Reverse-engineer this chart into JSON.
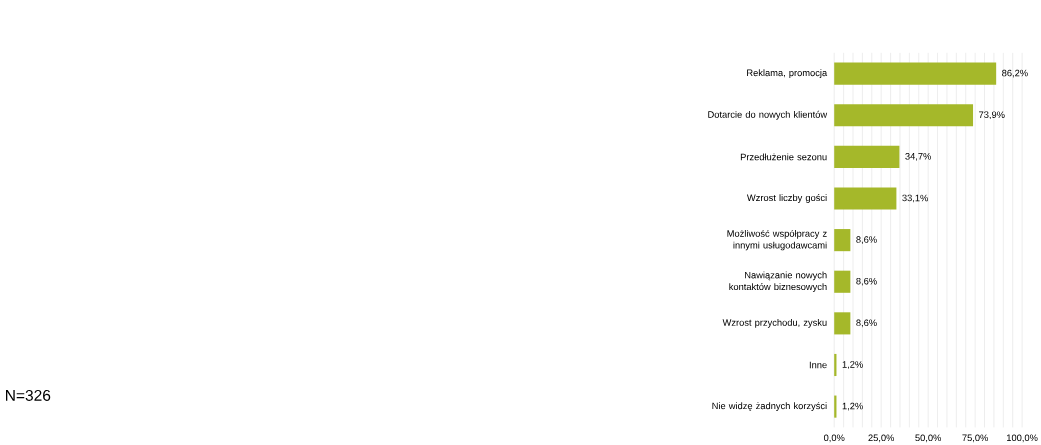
{
  "chart_data": {
    "type": "bar",
    "orientation": "horizontal",
    "categories": [
      "Reklama, promocja",
      "Dotarcie do nowych klientów",
      "Przedłużenie sezonu",
      "Wzrost liczby gości",
      "Możliwość współpracy z innymi usługodawcami",
      "Nawiązanie nowych kontaktów biznesowych",
      "Wzrost przychodu, zysku",
      "Inne",
      "Nie widzę żadnych korzyści"
    ],
    "values": [
      86.2,
      73.9,
      34.7,
      33.1,
      8.6,
      8.6,
      8.6,
      1.2,
      1.2
    ],
    "value_labels": [
      "86,2%",
      "73,9%",
      "34,7%",
      "33,1%",
      "8,6%",
      "8,6%",
      "8,6%",
      "1,2%",
      "1,2%"
    ],
    "color": "#a5b82a",
    "xlim": [
      0,
      100
    ],
    "xticks": [
      {
        "value": 0,
        "label": "0,0%"
      },
      {
        "value": 5,
        "label": null
      },
      {
        "value": 10,
        "label": null
      },
      {
        "value": 15,
        "label": null
      },
      {
        "value": 20,
        "label": null
      },
      {
        "value": 25,
        "label": "25,0%"
      },
      {
        "value": 30,
        "label": null
      },
      {
        "value": 35,
        "label": null
      },
      {
        "value": 40,
        "label": null
      },
      {
        "value": 45,
        "label": null
      },
      {
        "value": 50,
        "label": "50,0%"
      },
      {
        "value": 55,
        "label": null
      },
      {
        "value": 60,
        "label": null
      },
      {
        "value": 65,
        "label": null
      },
      {
        "value": 70,
        "label": null
      },
      {
        "value": 75,
        "label": "75,0%"
      },
      {
        "value": 80,
        "label": null
      },
      {
        "value": 85,
        "label": null
      },
      {
        "value": 90,
        "label": null
      },
      {
        "value": 95,
        "label": null
      },
      {
        "value": 100,
        "label": "100,0%"
      }
    ],
    "grid": "x",
    "annotations": [
      "N=326"
    ]
  }
}
